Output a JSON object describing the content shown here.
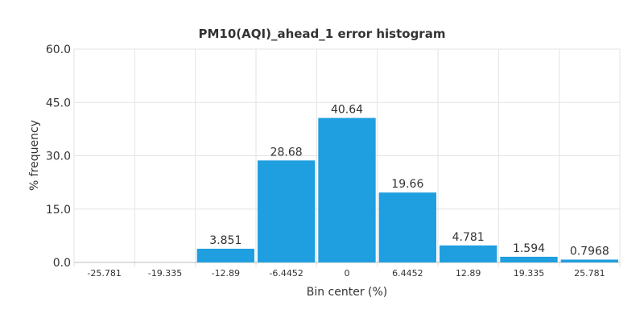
{
  "chart_data": {
    "type": "bar",
    "title": "PM10(AQI)_ahead_1 error histogram",
    "xlabel": "Bin center (%)",
    "ylabel": "% frequency",
    "categories": [
      "-25.781",
      "-19.335",
      "-12.89",
      "-6.4452",
      "0",
      "6.4452",
      "12.89",
      "19.335",
      "25.781"
    ],
    "values": [
      0,
      0,
      3.851,
      28.68,
      40.64,
      19.66,
      4.781,
      1.594,
      0.7968
    ],
    "data_labels": [
      "",
      "",
      "3.851",
      "28.68",
      "40.64",
      "19.66",
      "4.781",
      "1.594",
      "0.7968"
    ],
    "ylim": [
      0,
      60
    ],
    "yticks": [
      "0.0",
      "15.0",
      "30.0",
      "45.0",
      "60.0"
    ],
    "grid": true,
    "bar_color": "#1f9ee0"
  }
}
